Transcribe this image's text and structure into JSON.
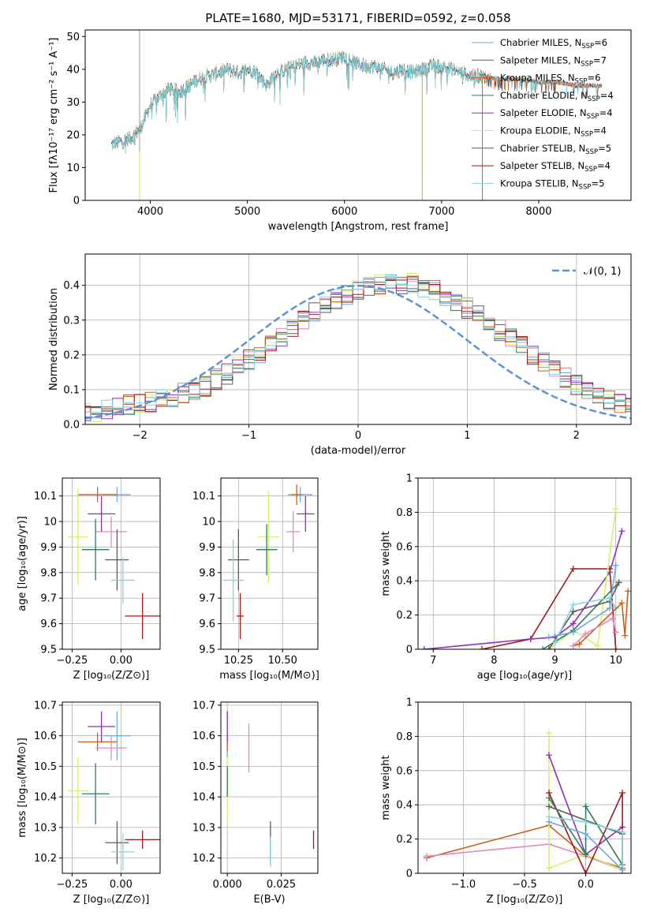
{
  "figure": {
    "title": "PLATE=1680, MJD=53171, FIBERID=0592, z=0.058"
  },
  "colors": {
    "series": [
      "#6fa8dc",
      "#5b5b5b",
      "#d6ef6e",
      "#e08bbd",
      "#8e30b5",
      "#2e7d5a",
      "#c9601a",
      "#a01818",
      "#7fd7df"
    ],
    "gaussian": "#5a8fd6",
    "grid": "#b0b0b0"
  },
  "chart_data": [
    {
      "id": "spectrum",
      "type": "line",
      "title": "PLATE=1680, MJD=53171, FIBERID=0592, z=0.058",
      "xlabel": "wavelength [Angstrom, rest frame]",
      "ylabel": "Flux [fλ10⁻¹⁷ erg cm⁻² s⁻¹ A⁻¹]",
      "xlim": [
        3330,
        8950
      ],
      "ylim": [
        0,
        52
      ],
      "xticks": [
        4000,
        5000,
        6000,
        7000,
        8000
      ],
      "yticks": [
        0,
        10,
        20,
        30,
        40,
        50
      ],
      "grid": false,
      "legend_position": "top-right",
      "legend": [
        {
          "label": "Chabrier MILES, N",
          "sub": "SSP",
          "n": "=6",
          "color": "#6fa8dc"
        },
        {
          "label": "Salpeter MILES, N",
          "sub": "SSP",
          "n": "=7",
          "color": "#5b5b5b"
        },
        {
          "label": "Kroupa MILES, N",
          "sub": "SSP",
          "n": "=6",
          "color": "#c9601a"
        },
        {
          "label": "Chabrier ELODIE, N",
          "sub": "SSP",
          "n": "=4",
          "color": "#2e7d5a"
        },
        {
          "label": "Salpeter ELODIE, N",
          "sub": "SSP",
          "n": "=4",
          "color": "#8e30b5"
        },
        {
          "label": "Kroupa ELODIE, N",
          "sub": "SSP",
          "n": "=4",
          "color": "#d6ef6e"
        },
        {
          "label": "Chabrier STELIB, N",
          "sub": "SSP",
          "n": "=5",
          "color": "#5b5b5b"
        },
        {
          "label": "Salpeter STELIB, N",
          "sub": "SSP",
          "n": "=4",
          "color": "#a01818"
        },
        {
          "label": "Kroupa STELIB, N",
          "sub": "SSP",
          "n": "=5",
          "color": "#7fd7df"
        }
      ],
      "continuum": {
        "x": [
          3600,
          3700,
          3800,
          3900,
          4000,
          4100,
          4200,
          4300,
          4400,
          4500,
          4600,
          4700,
          4800,
          4900,
          5000,
          5100,
          5200,
          5300,
          5400,
          5500,
          5600,
          5700,
          5800,
          5900,
          6000,
          6100,
          6200,
          6300,
          6400,
          6500,
          6600,
          6700,
          6800,
          6900,
          7000,
          7100,
          7200,
          7300,
          7400,
          7500
        ],
        "y": [
          17,
          18,
          19,
          22,
          29,
          32,
          34,
          33,
          35,
          37,
          38,
          39,
          40,
          39,
          40,
          39,
          35,
          39,
          40,
          41,
          42,
          42,
          43,
          43,
          44,
          42,
          41,
          41,
          40,
          39,
          40,
          39,
          40,
          41,
          41,
          40,
          39,
          38,
          38,
          37
        ]
      },
      "extension": {
        "x": [
          7400,
          7600,
          7800,
          8000,
          8200,
          8400,
          8600
        ],
        "y": [
          38,
          37,
          37,
          36,
          36,
          35,
          35
        ]
      },
      "spikes": [
        {
          "x": 3890,
          "y": [
            0,
            52
          ]
        },
        {
          "x": 6800,
          "y": [
            0,
            39
          ]
        },
        {
          "x": 7420,
          "y": [
            0,
            37
          ]
        }
      ]
    },
    {
      "id": "residuals",
      "type": "line",
      "xlabel": "(data-model)/error",
      "ylabel": "Normed distribution",
      "xlim": [
        -2.5,
        2.5
      ],
      "ylim": [
        0,
        0.49
      ],
      "xticks": [
        -2,
        -1,
        0,
        1,
        2
      ],
      "xticklabels": [
        "−2",
        "−1",
        "0",
        "1",
        "2"
      ],
      "yticks": [
        0.0,
        0.1,
        0.2,
        0.3,
        0.4
      ],
      "yticklabels": [
        "0.0",
        "0.1",
        "0.2",
        "0.3",
        "0.4"
      ],
      "grid": true,
      "legend_position": "top-right",
      "legend_label": "𝒩(0, 1)",
      "bin_width": 0.1,
      "histogram_base": [
        0.035,
        0.03,
        0.04,
        0.05,
        0.055,
        0.06,
        0.065,
        0.07,
        0.08,
        0.09,
        0.1,
        0.11,
        0.13,
        0.145,
        0.165,
        0.185,
        0.205,
        0.23,
        0.25,
        0.275,
        0.3,
        0.32,
        0.34,
        0.36,
        0.375,
        0.39,
        0.4,
        0.405,
        0.41,
        0.405,
        0.405,
        0.395,
        0.385,
        0.37,
        0.355,
        0.335,
        0.315,
        0.295,
        0.27,
        0.245,
        0.225,
        0.2,
        0.18,
        0.155,
        0.135,
        0.115,
        0.1,
        0.085,
        0.07,
        0.06,
        0.05
      ]
    },
    {
      "id": "age-vs-Z",
      "type": "scatter",
      "xlabel": "Z [log₁₀(Z/Z⊙)]",
      "ylabel": "age  [log₁₀(age/yr)]",
      "xlim": [
        -0.3,
        0.2
      ],
      "ylim": [
        9.5,
        10.17
      ],
      "xticks": [
        -0.25,
        0.0
      ],
      "xticklabels": [
        "−0.25",
        "0.00"
      ],
      "yticks": [
        9.5,
        9.6,
        9.7,
        9.8,
        9.9,
        10.0,
        10.1
      ],
      "grid": true,
      "points": [
        {
          "x": -0.02,
          "y": 10.105,
          "xerr": 0.07,
          "yerr": 0.03,
          "color": "#6fa8dc"
        },
        {
          "x": -0.12,
          "y": 10.105,
          "xerr": 0.1,
          "yerr": 0.03,
          "color": "#c9601a"
        },
        {
          "x": -0.22,
          "y": 9.94,
          "xerr": 0.05,
          "yerr": 0.19,
          "color": "#d6ef6e"
        },
        {
          "x": -0.05,
          "y": 9.96,
          "xerr": 0.08,
          "yerr": 0.06,
          "color": "#e08bbd"
        },
        {
          "x": -0.1,
          "y": 10.03,
          "xerr": 0.07,
          "yerr": 0.07,
          "color": "#8e30b5"
        },
        {
          "x": -0.13,
          "y": 9.89,
          "xerr": 0.07,
          "yerr": 0.12,
          "color": "#2e7d5a"
        },
        {
          "x": -0.02,
          "y": 9.85,
          "xerr": 0.06,
          "yerr": 0.12,
          "color": "#5b5b5b"
        },
        {
          "x": 0.01,
          "y": 9.77,
          "xerr": 0.06,
          "yerr": 0.09,
          "color": "#7fd7df"
        },
        {
          "x": 0.11,
          "y": 9.63,
          "xerr": 0.09,
          "yerr": 0.09,
          "color": "#a01818"
        }
      ]
    },
    {
      "id": "age-vs-mass",
      "type": "scatter",
      "xlabel": "mass [log₁₀(M/M⊙)]",
      "ylabel": "",
      "xlim": [
        10.15,
        10.7
      ],
      "ylim": [
        9.5,
        10.17
      ],
      "xticks": [
        10.25,
        10.5
      ],
      "xticklabels": [
        "10.25",
        "10.50"
      ],
      "yticks": [
        9.5,
        9.6,
        9.7,
        9.8,
        9.9,
        10.0,
        10.1
      ],
      "grid": true,
      "points": [
        {
          "x": 10.6,
          "y": 10.105,
          "xerr": 0.07,
          "yerr": 0.03,
          "color": "#6fa8dc"
        },
        {
          "x": 10.58,
          "y": 10.105,
          "xerr": 0.03,
          "yerr": 0.04,
          "color": "#c9601a"
        },
        {
          "x": 10.42,
          "y": 9.94,
          "xerr": 0.06,
          "yerr": 0.18,
          "color": "#d6ef6e"
        },
        {
          "x": 10.56,
          "y": 9.96,
          "xerr": 0.04,
          "yerr": 0.08,
          "color": "#e08bbd"
        },
        {
          "x": 10.63,
          "y": 10.03,
          "xerr": 0.05,
          "yerr": 0.07,
          "color": "#8e30b5"
        },
        {
          "x": 10.41,
          "y": 9.89,
          "xerr": 0.06,
          "yerr": 0.1,
          "color": "#2e7d5a"
        },
        {
          "x": 10.25,
          "y": 9.85,
          "xerr": 0.06,
          "yerr": 0.12,
          "color": "#5b5b5b"
        },
        {
          "x": 10.22,
          "y": 9.77,
          "xerr": 0.06,
          "yerr": 0.16,
          "color": "#7fd7df"
        },
        {
          "x": 10.26,
          "y": 9.63,
          "xerr": 0.02,
          "yerr": 0.09,
          "color": "#a01818"
        }
      ]
    },
    {
      "id": "weight-vs-age",
      "type": "line",
      "xlabel": "age  [log₁₀(age/yr)]",
      "ylabel": "mass weight",
      "xlim": [
        6.75,
        10.25
      ],
      "ylim": [
        0,
        1
      ],
      "xticks": [
        7,
        8,
        9,
        10
      ],
      "yticks": [
        0.0,
        0.2,
        0.4,
        0.6,
        0.8,
        1.0
      ],
      "grid": true,
      "series": [
        {
          "color": "#a01818",
          "x": [
            7.8,
            8.6,
            9.3,
            9.9,
            10.0
          ],
          "y": [
            0.0,
            0.06,
            0.47,
            0.47,
            0.0
          ]
        },
        {
          "color": "#8e30b5",
          "x": [
            6.85,
            8.6,
            9.0,
            9.3,
            9.9,
            10.1
          ],
          "y": [
            0.0,
            0.06,
            0.07,
            0.15,
            0.45,
            0.69
          ]
        },
        {
          "color": "#d6ef6e",
          "x": [
            8.9,
            9.3,
            9.7,
            10.0
          ],
          "y": [
            0.0,
            0.11,
            0.02,
            0.82
          ]
        },
        {
          "color": "#2e7d5a",
          "x": [
            8.8,
            9.3,
            10.05
          ],
          "y": [
            0.0,
            0.11,
            0.39
          ]
        },
        {
          "color": "#5b5b5b",
          "x": [
            8.9,
            9.3,
            9.9,
            10.05
          ],
          "y": [
            0.0,
            0.22,
            0.28,
            0.39
          ]
        },
        {
          "color": "#7fd7df",
          "x": [
            9.0,
            9.3,
            9.9,
            10.0
          ],
          "y": [
            0.04,
            0.26,
            0.3,
            0.24
          ]
        },
        {
          "color": "#6fa8dc",
          "x": [
            8.9,
            9.3,
            9.9,
            10.0
          ],
          "y": [
            0.07,
            0.1,
            0.24,
            0.49
          ]
        },
        {
          "color": "#c9601a",
          "x": [
            9.3,
            9.4,
            10.1,
            10.15,
            10.2
          ],
          "y": [
            0.02,
            0.03,
            0.27,
            0.08,
            0.34
          ]
        },
        {
          "color": "#e08bbd",
          "x": [
            9.3,
            9.5,
            9.95,
            10.0
          ],
          "y": [
            0.02,
            0.09,
            0.18,
            0.1
          ]
        }
      ]
    },
    {
      "id": "mass-vs-Z",
      "type": "scatter",
      "xlabel": "Z [log₁₀(Z/Z⊙)]",
      "ylabel": "mass [log₁₀(M/M⊙)]",
      "xlim": [
        -0.3,
        0.2
      ],
      "ylim": [
        10.15,
        10.71
      ],
      "xticks": [
        -0.25,
        0.0
      ],
      "xticklabels": [
        "−0.25",
        "0.00"
      ],
      "yticks": [
        10.2,
        10.3,
        10.4,
        10.5,
        10.6,
        10.7
      ],
      "grid": true,
      "points": [
        {
          "x": -0.02,
          "y": 10.6,
          "xerr": 0.07,
          "yerr": 0.08,
          "color": "#6fa8dc"
        },
        {
          "x": -0.12,
          "y": 10.58,
          "xerr": 0.1,
          "yerr": 0.03,
          "color": "#c9601a"
        },
        {
          "x": -0.22,
          "y": 10.42,
          "xerr": 0.05,
          "yerr": 0.11,
          "color": "#d6ef6e"
        },
        {
          "x": -0.05,
          "y": 10.56,
          "xerr": 0.08,
          "yerr": 0.04,
          "color": "#e08bbd"
        },
        {
          "x": -0.1,
          "y": 10.63,
          "xerr": 0.07,
          "yerr": 0.05,
          "color": "#8e30b5"
        },
        {
          "x": -0.13,
          "y": 10.41,
          "xerr": 0.07,
          "yerr": 0.1,
          "color": "#2e7d5a"
        },
        {
          "x": -0.02,
          "y": 10.25,
          "xerr": 0.06,
          "yerr": 0.07,
          "color": "#5b5b5b"
        },
        {
          "x": 0.01,
          "y": 10.22,
          "xerr": 0.06,
          "yerr": 0.06,
          "color": "#7fd7df"
        },
        {
          "x": 0.11,
          "y": 10.26,
          "xerr": 0.09,
          "yerr": 0.03,
          "color": "#a01818"
        }
      ]
    },
    {
      "id": "mass-vs-ebv",
      "type": "scatter",
      "xlabel": "E(B-V)",
      "ylabel": "",
      "xlim": [
        -0.003,
        0.042
      ],
      "ylim": [
        10.15,
        10.71
      ],
      "xticks": [
        0.0,
        0.025
      ],
      "xticklabels": [
        "0.000",
        "0.025"
      ],
      "yticks": [
        10.2,
        10.3,
        10.4,
        10.5,
        10.6,
        10.7
      ],
      "grid": true,
      "points": [
        {
          "x": 0.0,
          "y": 10.6,
          "xerr": 0.0,
          "yerr": 0.08,
          "color": "#6fa8dc"
        },
        {
          "x": 0.0,
          "y": 10.58,
          "xerr": 0.0,
          "yerr": 0.03,
          "color": "#c9601a"
        },
        {
          "x": 0.0,
          "y": 10.42,
          "xerr": 0.0,
          "yerr": 0.11,
          "color": "#d6ef6e"
        },
        {
          "x": 0.01,
          "y": 10.56,
          "xerr": 0.0,
          "yerr": 0.08,
          "color": "#e08bbd"
        },
        {
          "x": 0.0,
          "y": 10.63,
          "xerr": 0.0,
          "yerr": 0.05,
          "color": "#8e30b5"
        },
        {
          "x": 0.0,
          "y": 10.45,
          "xerr": 0.0,
          "yerr": 0.05,
          "color": "#2e7d5a"
        },
        {
          "x": 0.02,
          "y": 10.25,
          "xerr": 0.0,
          "yerr": 0.07,
          "color": "#5b5b5b"
        },
        {
          "x": 0.02,
          "y": 10.22,
          "xerr": 0.0,
          "yerr": 0.05,
          "color": "#7fd7df"
        },
        {
          "x": 0.04,
          "y": 10.26,
          "xerr": 0.0,
          "yerr": 0.03,
          "color": "#a01818"
        }
      ]
    },
    {
      "id": "weight-vs-Z",
      "type": "line",
      "xlabel": "Z [log₁₀(Z/Z⊙)]",
      "ylabel": "mass weight",
      "xlim": [
        -1.37,
        0.37
      ],
      "ylim": [
        0,
        1
      ],
      "xticks": [
        -1.0,
        -0.5,
        0.0
      ],
      "xticklabels": [
        "−1.0",
        "−0.5",
        "0.0"
      ],
      "yticks": [
        0.0,
        0.2,
        0.4,
        0.6,
        0.8,
        1.0
      ],
      "grid": true,
      "series": [
        {
          "color": "#c9601a",
          "x": [
            -1.3,
            -0.3,
            0.0,
            0.3
          ],
          "y": [
            0.09,
            0.28,
            0.1,
            0.03
          ]
        },
        {
          "color": "#e08bbd",
          "x": [
            -1.3,
            -0.3,
            0.0,
            0.3
          ],
          "y": [
            0.1,
            0.17,
            0.1,
            0.02
          ]
        },
        {
          "color": "#d6ef6e",
          "x": [
            -0.3,
            -0.3,
            0.0,
            0.3
          ],
          "y": [
            0.82,
            0.03,
            0.11,
            0.02
          ]
        },
        {
          "color": "#8e30b5",
          "x": [
            -0.3,
            0.0,
            0.3
          ],
          "y": [
            0.69,
            0.11,
            0.27
          ]
        },
        {
          "color": "#a01818",
          "x": [
            -0.3,
            0.0,
            0.3,
            0.3
          ],
          "y": [
            0.47,
            0.0,
            0.47,
            0.0
          ]
        },
        {
          "color": "#2e7d5a",
          "x": [
            -0.3,
            0.0,
            0.0,
            0.3
          ],
          "y": [
            0.44,
            0.11,
            0.39,
            0.05
          ]
        },
        {
          "color": "#5b5b5b",
          "x": [
            -0.3,
            0.3
          ],
          "y": [
            0.39,
            0.23
          ]
        },
        {
          "color": "#7fd7df",
          "x": [
            -0.3,
            0.0,
            0.3,
            0.3
          ],
          "y": [
            0.33,
            0.3,
            0.24,
            0.02
          ]
        },
        {
          "color": "#6fa8dc",
          "x": [
            -0.3,
            0.0,
            0.3
          ],
          "y": [
            0.3,
            0.23,
            0.02
          ]
        }
      ]
    }
  ]
}
